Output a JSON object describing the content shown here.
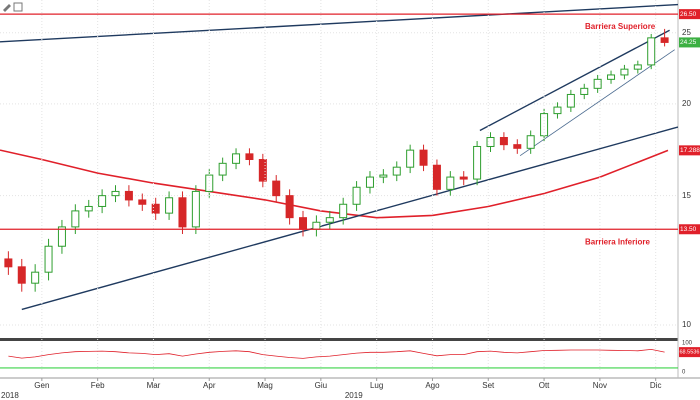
{
  "chart_data": {
    "type": "candlestick",
    "log_scale": true,
    "grid": true,
    "up_color": "#2e9e2e",
    "down_color": "#d62728",
    "xlim": [
      -0.75,
      11.4
    ],
    "ylim": [
      9.6,
      27.7
    ],
    "yticks": [
      10,
      15,
      20,
      25
    ],
    "xticks": [
      {
        "value": 0,
        "label": "Gen"
      },
      {
        "value": 1,
        "label": "Feb"
      },
      {
        "value": 2,
        "label": "Mar"
      },
      {
        "value": 3,
        "label": "Apr"
      },
      {
        "value": 4,
        "label": "Mag"
      },
      {
        "value": 5,
        "label": "Giu"
      },
      {
        "value": 6,
        "label": "Lug"
      },
      {
        "value": 7,
        "label": "Ago"
      },
      {
        "value": 8,
        "label": "Set"
      },
      {
        "value": 9,
        "label": "Ott"
      },
      {
        "value": 10,
        "label": "Nov"
      },
      {
        "value": 11,
        "label": "Dic"
      }
    ],
    "year_labels": [
      {
        "value": -0.75,
        "label": "2018"
      },
      {
        "value": 5.43,
        "label": "2019"
      }
    ],
    "x": [
      -0.6,
      -0.36,
      -0.12,
      0.12,
      0.36,
      0.6,
      0.84,
      1.08,
      1.32,
      1.56,
      1.8,
      2.04,
      2.28,
      2.52,
      2.76,
      3.0,
      3.24,
      3.48,
      3.72,
      3.96,
      4.2,
      4.44,
      4.68,
      4.92,
      5.16,
      5.4,
      5.64,
      5.88,
      6.12,
      6.36,
      6.6,
      6.84,
      7.08,
      7.32,
      7.56,
      7.8,
      8.04,
      8.28,
      8.52,
      8.76,
      9.0,
      9.24,
      9.48,
      9.72,
      9.96,
      10.2,
      10.44,
      10.68,
      10.92,
      11.16
    ],
    "open": [
      12.3,
      12.0,
      11.4,
      11.8,
      12.8,
      13.6,
      14.3,
      14.5,
      15.0,
      15.2,
      14.8,
      14.6,
      14.2,
      14.9,
      13.6,
      15.2,
      16.0,
      16.6,
      17.1,
      16.8,
      15.7,
      15.0,
      14.0,
      13.5,
      13.8,
      14.0,
      14.6,
      15.4,
      15.9,
      16.0,
      16.4,
      17.3,
      16.5,
      15.3,
      15.9,
      15.8,
      17.5,
      18.0,
      17.6,
      17.4,
      18.1,
      19.4,
      19.8,
      20.6,
      21.0,
      21.6,
      21.9,
      22.3,
      22.6,
      24.6
    ],
    "high": [
      12.6,
      12.3,
      12.1,
      13.1,
      13.9,
      14.6,
      14.8,
      15.3,
      15.5,
      15.5,
      15.1,
      14.9,
      15.2,
      15.2,
      15.5,
      16.3,
      16.9,
      17.4,
      17.4,
      17.1,
      16.0,
      15.3,
      14.3,
      14.1,
      14.3,
      14.9,
      15.7,
      16.2,
      16.3,
      16.7,
      17.6,
      17.6,
      16.8,
      16.2,
      16.2,
      17.8,
      18.3,
      18.3,
      17.9,
      18.4,
      19.7,
      20.1,
      20.9,
      21.3,
      21.9,
      22.2,
      22.6,
      22.9,
      24.9,
      25.3
    ],
    "low": [
      11.7,
      11.1,
      11.1,
      11.5,
      12.5,
      13.3,
      14.0,
      14.2,
      14.7,
      14.5,
      14.3,
      13.9,
      13.9,
      13.3,
      13.3,
      14.9,
      15.7,
      16.3,
      16.5,
      15.4,
      14.7,
      13.7,
      13.2,
      13.2,
      13.5,
      13.7,
      14.3,
      15.1,
      15.6,
      15.7,
      16.1,
      16.2,
      15.0,
      15.0,
      15.5,
      15.5,
      17.2,
      17.3,
      17.1,
      17.1,
      17.8,
      19.1,
      19.5,
      20.3,
      20.7,
      21.3,
      21.6,
      22.0,
      22.3,
      23.95
    ],
    "close": [
      12.0,
      11.4,
      11.8,
      12.8,
      13.6,
      14.3,
      14.5,
      15.0,
      15.2,
      14.8,
      14.6,
      14.2,
      14.9,
      13.6,
      15.2,
      16.0,
      16.6,
      17.1,
      16.8,
      15.7,
      15.0,
      14.0,
      13.5,
      13.8,
      14.0,
      14.6,
      15.4,
      15.9,
      16.0,
      16.4,
      17.3,
      16.5,
      15.3,
      15.9,
      15.8,
      17.5,
      18.0,
      17.6,
      17.4,
      18.1,
      19.4,
      19.8,
      20.6,
      21.0,
      21.6,
      21.9,
      22.3,
      22.6,
      24.6,
      24.25
    ],
    "moving_average": {
      "color": "#e0202a",
      "x": [
        -0.75,
        0,
        1,
        2,
        3,
        4,
        5,
        6,
        7,
        8,
        9,
        10,
        11.22
      ],
      "values": [
        17.3,
        16.8,
        16.1,
        15.6,
        15.2,
        14.8,
        14.3,
        14.0,
        14.1,
        14.5,
        15.1,
        15.9,
        17.2887
      ]
    },
    "trendlines": [
      {
        "color": "#1f3a5f",
        "x": [
          -0.75,
          11.4
        ],
        "values": [
          24.3,
          27.3
        ]
      },
      {
        "color": "#1f3a5f",
        "x": [
          -0.36,
          11.4
        ],
        "values": [
          10.5,
          18.6
        ]
      },
      {
        "color": "#1f3a5f",
        "x": [
          7.85,
          11.25
        ],
        "values": [
          18.4,
          25.2
        ]
      },
      {
        "color": "#4a6a8f",
        "x": [
          8.57,
          11.34
        ],
        "values": [
          17.0,
          23.7
        ]
      }
    ],
    "barriers": [
      {
        "label": "Barriera Superiore",
        "value": 26.5,
        "color": "#e0202a"
      },
      {
        "label": "Barriera Inferiore",
        "value": 13.5,
        "color": "#e0202a"
      }
    ],
    "price_tags": [
      {
        "value": 26.5,
        "label": "26.50",
        "color": "#e0202a"
      },
      {
        "value": 24.25,
        "label": "24.25",
        "color": "#3cb043"
      },
      {
        "value": 17.2887,
        "label": "17.2887",
        "color": "#e0202a"
      },
      {
        "value": 13.5,
        "label": "13.50",
        "color": "#e0202a"
      }
    ],
    "oscillator": {
      "color": "#e0202a",
      "ylim": [
        0,
        100
      ],
      "yticks": [
        0,
        100
      ],
      "values": [
        55,
        48,
        52,
        60,
        66,
        70,
        71,
        72,
        70,
        66,
        64,
        60,
        63,
        55,
        62,
        68,
        71,
        73,
        70,
        60,
        55,
        50,
        47,
        52,
        55,
        60,
        65,
        68,
        68,
        70,
        73,
        64,
        56,
        60,
        60,
        70,
        72,
        68,
        66,
        70,
        74,
        75,
        76,
        76,
        76,
        75,
        74,
        73,
        78,
        68.5536
      ],
      "value_label": "68.5536",
      "level": {
        "value": 14,
        "color": "#3cd34a"
      }
    }
  }
}
